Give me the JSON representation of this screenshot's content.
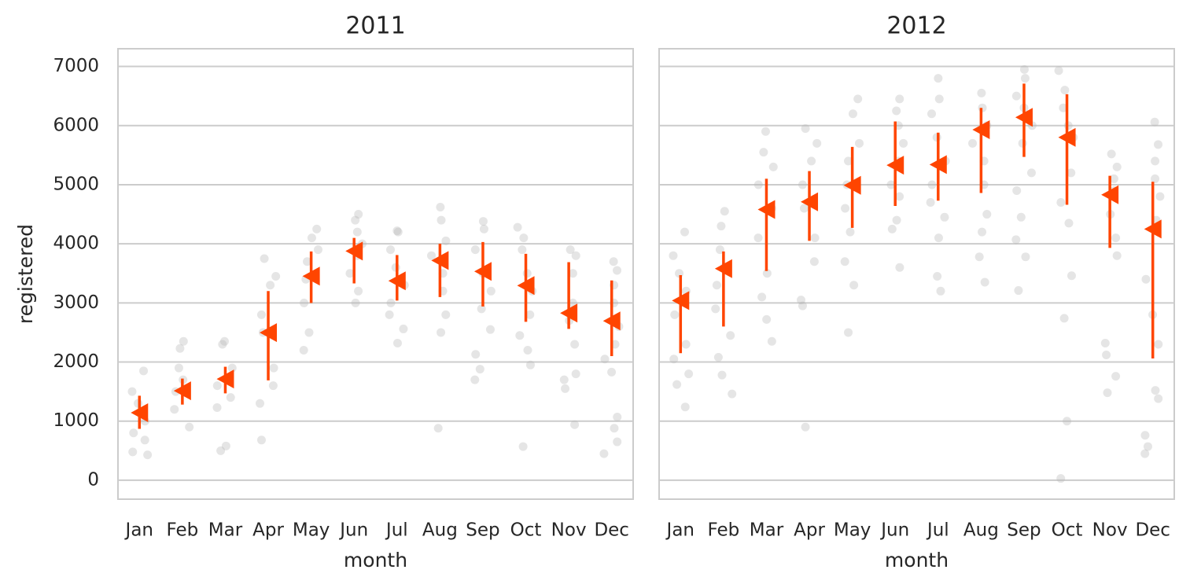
{
  "chart_data": [
    {
      "type": "strip",
      "title": "2011",
      "xlabel": "month",
      "ylabel": "registered",
      "categories": [
        "Jan",
        "Feb",
        "Mar",
        "Apr",
        "May",
        "Jun",
        "Jul",
        "Aug",
        "Sep",
        "Oct",
        "Nov",
        "Dec"
      ],
      "points": [
        [
          1850,
          1500,
          1300,
          1000,
          800,
          680,
          480,
          430
        ],
        [
          2350,
          2230,
          1900,
          1700,
          1500,
          1200,
          900
        ],
        [
          2350,
          2300,
          1900,
          1600,
          1400,
          1230,
          580,
          500
        ],
        [
          3750,
          3450,
          3300,
          2800,
          2500,
          1900,
          1600,
          1300,
          680
        ],
        [
          4250,
          4100,
          3900,
          3700,
          3400,
          3000,
          2500,
          2200
        ],
        [
          4500,
          4400,
          4200,
          4000,
          3800,
          3500,
          3200,
          3000
        ],
        [
          4220,
          4200,
          3900,
          3600,
          3300,
          3000,
          2800,
          2560,
          2320
        ],
        [
          4620,
          4400,
          4050,
          3800,
          3500,
          3200,
          2800,
          2500,
          880
        ],
        [
          4380,
          4250,
          3900,
          3500,
          3200,
          2900,
          2550,
          2130,
          1880,
          1700
        ],
        [
          4280,
          4100,
          3900,
          3500,
          3200,
          2800,
          2450,
          2200,
          1950,
          570
        ],
        [
          3900,
          3800,
          3500,
          3000,
          2700,
          2300,
          1800,
          1700,
          1550,
          940
        ],
        [
          3700,
          3550,
          3300,
          3000,
          2600,
          2300,
          2050,
          1830,
          1070,
          880,
          650,
          450
        ]
      ],
      "values": [
        1142,
        1514,
        1713,
        2497,
        3453,
        3878,
        3373,
        3718,
        3533,
        3294,
        2829,
        2696
      ],
      "ci_low": [
        870,
        1280,
        1470,
        1690,
        3000,
        3330,
        3040,
        3100,
        2940,
        2680,
        2560,
        2100
      ],
      "ci_high": [
        1430,
        1720,
        1920,
        3200,
        3870,
        4100,
        3810,
        4000,
        4030,
        3830,
        3690,
        3380
      ],
      "point_color": "#b4b4b4",
      "mean_color": "#ff4500",
      "ylim": [
        -320,
        7300
      ],
      "yticks": [
        0,
        1000,
        2000,
        3000,
        4000,
        5000,
        6000,
        7000
      ],
      "grid": true
    },
    {
      "type": "strip",
      "title": "2012",
      "xlabel": "month",
      "sharey": true,
      "categories": [
        "Jan",
        "Feb",
        "Mar",
        "Apr",
        "May",
        "Jun",
        "Jul",
        "Aug",
        "Sep",
        "Oct",
        "Nov",
        "Dec"
      ],
      "points": [
        [
          4200,
          3800,
          3500,
          3200,
          2800,
          2300,
          2050,
          1800,
          1620,
          1240
        ],
        [
          4550,
          4300,
          3900,
          3600,
          3300,
          2900,
          2450,
          2080,
          1780,
          1460
        ],
        [
          5900,
          5550,
          5300,
          5000,
          4600,
          4100,
          3500,
          3100,
          2720,
          2350
        ],
        [
          5950,
          5700,
          5400,
          5000,
          4600,
          4100,
          3700,
          3050,
          2950,
          900
        ],
        [
          6450,
          6200,
          5700,
          5400,
          5000,
          4600,
          4200,
          3700,
          3300,
          2500
        ],
        [
          6450,
          6250,
          6000,
          5700,
          5400,
          5000,
          4800,
          4400,
          4250,
          3600
        ],
        [
          6800,
          6450,
          6200,
          5800,
          5400,
          5000,
          4700,
          4450,
          4100,
          3450,
          3200
        ],
        [
          6550,
          6300,
          6000,
          5700,
          5400,
          5000,
          4500,
          4200,
          3780,
          3350
        ],
        [
          6950,
          6800,
          6500,
          6300,
          6000,
          5700,
          5200,
          4900,
          4450,
          4070,
          3780,
          3210
        ],
        [
          6930,
          6600,
          6300,
          6000,
          5800,
          5200,
          4700,
          4350,
          3460,
          2740,
          1000,
          30
        ],
        [
          5520,
          5300,
          5100,
          4900,
          4500,
          4100,
          3800,
          2320,
          2120,
          1760,
          1480
        ],
        [
          6060,
          5680,
          5400,
          5100,
          4800,
          4400,
          3400,
          2800,
          2300,
          1520,
          1380,
          760,
          570,
          450
        ]
      ],
      "values": [
        3040,
        3580,
        4580,
        4710,
        4990,
        5330,
        5340,
        5930,
        6140,
        5800,
        4830,
        4250
      ],
      "ci_low": [
        2150,
        2600,
        3540,
        4050,
        4270,
        4640,
        4730,
        4860,
        5470,
        4660,
        3930,
        2060
      ],
      "ci_high": [
        3470,
        3870,
        5100,
        5230,
        5640,
        6070,
        5880,
        6300,
        6710,
        6530,
        5150,
        5050
      ],
      "point_color": "#b4b4b4",
      "mean_color": "#ff4500",
      "grid": true
    }
  ]
}
